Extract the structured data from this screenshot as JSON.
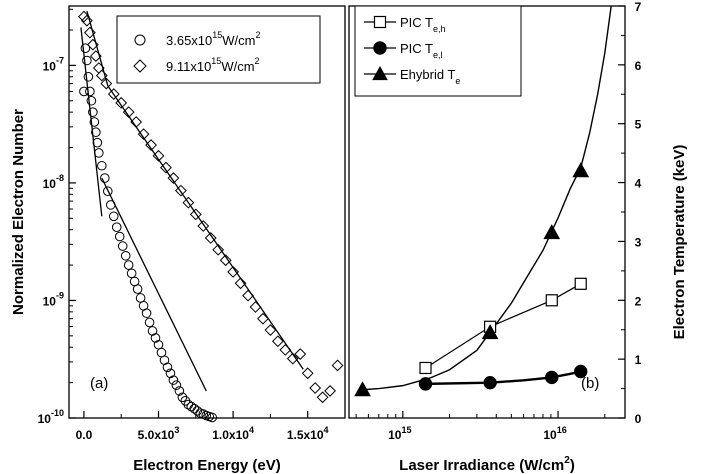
{
  "chart_data": [
    {
      "type": "scatter",
      "panel_label": "(a)",
      "xlabel": "Electron Energy (eV)",
      "ylabel": "Normalized Electron Number",
      "xlim": [
        -1000,
        17500
      ],
      "ylim": [
        1e-10,
        3.2e-07
      ],
      "yscale": "log",
      "grid": false,
      "legend_position": "top-right",
      "xticks": [
        {
          "value": 0,
          "label": "0.0"
        },
        {
          "value": 5000,
          "label": "5.0x10",
          "exp": "3"
        },
        {
          "value": 10000,
          "label": "1.0x10",
          "exp": "4"
        },
        {
          "value": 15000,
          "label": "1.5x10",
          "exp": "4"
        }
      ],
      "yticks": [
        {
          "value": 1e-10,
          "label": "10",
          "exp": "-10"
        },
        {
          "value": 1e-09,
          "label": "10",
          "exp": "-9"
        },
        {
          "value": 1e-08,
          "label": "10",
          "exp": "-8"
        },
        {
          "value": 1e-07,
          "label": "10",
          "exp": "-7"
        }
      ],
      "series": [
        {
          "name": "3.65x10",
          "name_exp": "15",
          "name_suffix": "W/cm",
          "name_sup2": "2",
          "marker": "circle",
          "x": [
            0,
            100,
            200,
            300,
            400,
            500,
            600,
            700,
            800,
            900,
            1000,
            1200,
            1400,
            1600,
            1800,
            2000,
            2200,
            2400,
            2600,
            2800,
            3000,
            3200,
            3400,
            3600,
            3800,
            4000,
            4200,
            4400,
            4600,
            4800,
            5000,
            5200,
            5400,
            5600,
            5800,
            6000,
            6200,
            6400,
            6600,
            6800,
            7000,
            7200,
            7400,
            7600,
            7800,
            8000,
            8200,
            8400,
            8600
          ],
          "y": [
            6e-08,
            1.4e-07,
            1.1e-07,
            8e-08,
            6e-08,
            5e-08,
            4e-08,
            3.3e-08,
            2.7e-08,
            2.2e-08,
            1.8e-08,
            1.4e-08,
            1.1e-08,
            8.5e-09,
            6.5e-09,
            5.2e-09,
            4.2e-09,
            3.5e-09,
            2.9e-09,
            2.4e-09,
            2e-09,
            1.7e-09,
            1.45e-09,
            1.25e-09,
            1.05e-09,
            9e-10,
            7.8e-10,
            6.5e-10,
            5.5e-10,
            4.8e-10,
            4.2e-10,
            3.6e-10,
            3.1e-10,
            2.7e-10,
            2.4e-10,
            2.1e-10,
            1.9e-10,
            1.7e-10,
            1.5e-10,
            1.4e-10,
            1.3e-10,
            1.25e-10,
            1.2e-10,
            1.15e-10,
            1.1e-10,
            1.08e-10,
            1.05e-10,
            1.03e-10,
            1.01e-10
          ]
        },
        {
          "name": "9.11x10",
          "name_exp": "15",
          "name_suffix": "W/cm",
          "name_sup2": "2",
          "marker": "diamond",
          "x": [
            0,
            200,
            400,
            600,
            800,
            1000,
            1200,
            1500,
            2000,
            2500,
            3000,
            3500,
            4000,
            4500,
            5000,
            5500,
            6000,
            6500,
            7000,
            7500,
            8000,
            8500,
            9000,
            9500,
            10000,
            10500,
            11000,
            11500,
            12000,
            12500,
            13000,
            13500,
            14000,
            14500,
            15000,
            15500,
            16000,
            16500,
            17000
          ],
          "y": [
            2.6e-07,
            2.4e-07,
            1.9e-07,
            1.5e-07,
            1.2e-07,
            9.5e-08,
            8.2e-08,
            7e-08,
            5.7e-08,
            4.8e-08,
            4e-08,
            3.3e-08,
            2.6e-08,
            2.1e-08,
            1.7e-08,
            1.35e-08,
            1.1e-08,
            8.6e-09,
            6.8e-09,
            5.4e-09,
            4.3e-09,
            3.4e-09,
            2.7e-09,
            2.2e-09,
            1.75e-09,
            1.4e-09,
            1.1e-09,
            8.8e-10,
            7e-10,
            5.6e-10,
            4.5e-10,
            3.8e-10,
            3.2e-10,
            3.5e-10,
            2.4e-10,
            1.8e-10,
            1.5e-10,
            1.7e-10,
            2.8e-10
          ]
        }
      ],
      "fits": [
        {
          "x": [
            -200,
            1200
          ],
          "y": [
            2.1e-07,
            5.2e-09
          ]
        },
        {
          "x": [
            1200,
            8200
          ],
          "y": [
            1.1e-08,
            1.7e-10
          ]
        },
        {
          "x": [
            200,
            1600
          ],
          "y": [
            2.9e-07,
            6.7e-08
          ]
        },
        {
          "x": [
            1600,
            14700
          ],
          "y": [
            6.7e-08,
            2.6e-10
          ]
        }
      ]
    },
    {
      "type": "line",
      "panel_label": "(b)",
      "xlabel": "Laser Irradiance (W/cm",
      "xlabel_sup": "2",
      "xlabel_tail": ")",
      "ylabel": "Electron Temperature (keV)",
      "xscale": "log",
      "xlim": [
        450000000000000.0,
        2.7e+16
      ],
      "ylim": [
        0,
        7
      ],
      "grid": false,
      "legend_position": "top-left",
      "xticks": [
        {
          "value": 1000000000000000.0,
          "label": "10",
          "exp": "15"
        },
        {
          "value": 1e+16,
          "label": "10",
          "exp": "16"
        }
      ],
      "yticks": [
        0,
        1,
        2,
        3,
        4,
        5,
        6,
        7
      ],
      "series": [
        {
          "name": "PIC T",
          "name_sub": "e,h",
          "marker": "square",
          "x": [
            1400000000000000.0,
            3650000000000000.0,
            9110000000000000.0,
            1.4e+16
          ],
          "y": [
            0.85,
            1.55,
            2.0,
            2.28
          ]
        },
        {
          "name": "PIC T",
          "name_sub": "e,l",
          "marker": "filled-circle",
          "x": [
            1400000000000000.0,
            3650000000000000.0,
            9110000000000000.0,
            1.4e+16
          ],
          "y": [
            0.58,
            0.6,
            0.69,
            0.79
          ]
        },
        {
          "name": "Ehybrid T",
          "name_sub": "e",
          "marker": "filled-triangle",
          "x": [
            550000000000000.0,
            3650000000000000.0,
            9110000000000000.0,
            1.4e+16
          ],
          "y": [
            0.48,
            1.45,
            3.15,
            4.2
          ]
        }
      ],
      "ehybrid_curve": {
        "x": [
          550000000000000.0,
          700000000000000.0,
          1000000000000000.0,
          1500000000000000.0,
          2000000000000000.0,
          3000000000000000.0,
          4000000000000000.0,
          5000000000000000.0,
          6000000000000000.0,
          8000000000000000.0,
          1e+16,
          1.2e+16,
          1.4e+16,
          1.6e+16,
          1.8e+16,
          2e+16,
          2.2e+16
        ],
        "y": [
          0.48,
          0.5,
          0.55,
          0.68,
          0.82,
          1.15,
          1.6,
          1.95,
          2.3,
          2.85,
          3.4,
          3.9,
          4.25,
          4.85,
          5.5,
          6.2,
          7.0
        ]
      },
      "picl_curve": {
        "x": [
          1400000000000000.0,
          3650000000000000.0,
          6000000000000000.0,
          9110000000000000.0,
          1.2e+16,
          1.4e+16
        ],
        "y": [
          0.58,
          0.6,
          0.64,
          0.69,
          0.75,
          0.79
        ]
      }
    }
  ]
}
